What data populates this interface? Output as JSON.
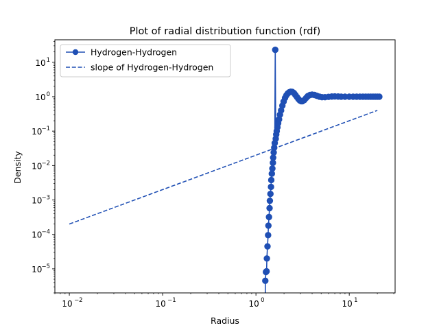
{
  "chart_data": {
    "type": "line",
    "title": "Plot of radial distribution function (rdf)",
    "xlabel": "Radius",
    "ylabel": "Density",
    "xscale": "log",
    "yscale": "log",
    "xlim": [
      0.007,
      31
    ],
    "ylim": [
      2e-06,
      45
    ],
    "x_ticks": [
      {
        "value": 0.01,
        "base": "10",
        "exp": "−2"
      },
      {
        "value": 0.1,
        "base": "10",
        "exp": "−1"
      },
      {
        "value": 1,
        "base": "10",
        "exp": "0"
      },
      {
        "value": 10,
        "base": "10",
        "exp": "1"
      }
    ],
    "y_ticks": [
      {
        "value": 1e-05,
        "base": "10",
        "exp": "−5"
      },
      {
        "value": 0.0001,
        "base": "10",
        "exp": "−4"
      },
      {
        "value": 0.001,
        "base": "10",
        "exp": "−3"
      },
      {
        "value": 0.01,
        "base": "10",
        "exp": "−2"
      },
      {
        "value": 0.1,
        "base": "10",
        "exp": "−1"
      },
      {
        "value": 1,
        "base": "10",
        "exp": "0"
      },
      {
        "value": 10,
        "base": "10",
        "exp": "1"
      }
    ],
    "grid": false,
    "legend_position": "top-left",
    "series_color": "#1f4fb4",
    "series": [
      {
        "name": "Hydrogen-Hydrogen",
        "style": "solid line with circle markers",
        "points": [
          [
            1.26,
            4.5e-06
          ],
          [
            1.28,
            8.1e-06
          ],
          [
            1.3,
            8.5e-06
          ],
          [
            1.31,
            2e-05
          ],
          [
            1.33,
            4.5e-05
          ],
          [
            1.35,
            9.5e-05
          ],
          [
            1.36,
            0.00018
          ],
          [
            1.38,
            0.00032
          ],
          [
            1.4,
            0.00058
          ],
          [
            1.41,
            0.00095
          ],
          [
            1.43,
            0.0015
          ],
          [
            1.45,
            0.0024
          ],
          [
            1.46,
            0.0038
          ],
          [
            1.48,
            0.0058
          ],
          [
            1.5,
            0.0082
          ],
          [
            1.52,
            0.012
          ],
          [
            1.53,
            0.017
          ],
          [
            1.55,
            0.024
          ],
          [
            1.57,
            0.033
          ],
          [
            1.59,
            0.045
          ],
          [
            1.61,
            23
          ],
          [
            1.63,
            0.06
          ],
          [
            1.65,
            0.08
          ],
          [
            1.67,
            0.1
          ],
          [
            1.7,
            0.13
          ],
          [
            1.73,
            0.17
          ],
          [
            1.77,
            0.22
          ],
          [
            1.81,
            0.3
          ],
          [
            1.86,
            0.4
          ],
          [
            1.92,
            0.55
          ],
          [
            1.98,
            0.72
          ],
          [
            2.05,
            0.92
          ],
          [
            2.12,
            1.1
          ],
          [
            2.2,
            1.25
          ],
          [
            2.28,
            1.35
          ],
          [
            2.36,
            1.4
          ],
          [
            2.45,
            1.38
          ],
          [
            2.55,
            1.28
          ],
          [
            2.65,
            1.12
          ],
          [
            2.75,
            0.98
          ],
          [
            2.85,
            0.86
          ],
          [
            2.95,
            0.78
          ],
          [
            3.05,
            0.74
          ],
          [
            3.15,
            0.74
          ],
          [
            3.3,
            0.8
          ],
          [
            3.45,
            0.92
          ],
          [
            3.6,
            1.04
          ],
          [
            3.8,
            1.12
          ],
          [
            4.0,
            1.15
          ],
          [
            4.25,
            1.12
          ],
          [
            4.5,
            1.06
          ],
          [
            4.8,
            1.0
          ],
          [
            5.1,
            0.97
          ],
          [
            5.5,
            0.97
          ],
          [
            6.0,
            0.99
          ],
          [
            6.5,
            1.01
          ],
          [
            7.0,
            1.02
          ],
          [
            7.6,
            1.01
          ],
          [
            8.2,
            1.0
          ],
          [
            9.0,
            1.0
          ],
          [
            10.0,
            1.0
          ],
          [
            11.0,
            1.0
          ],
          [
            12.0,
            1.0
          ],
          [
            13.0,
            1.0
          ],
          [
            14.0,
            1.0
          ],
          [
            15.0,
            1.0
          ],
          [
            16.0,
            1.0
          ],
          [
            17.0,
            1.0
          ],
          [
            18.0,
            1.0
          ],
          [
            19.0,
            1.0
          ],
          [
            20.0,
            1.0
          ],
          [
            21.0,
            1.0
          ]
        ]
      },
      {
        "name": "slope of Hydrogen-Hydrogen",
        "style": "dashed line",
        "points": [
          [
            0.01,
            0.0002
          ],
          [
            20.0,
            0.4
          ]
        ]
      }
    ]
  }
}
